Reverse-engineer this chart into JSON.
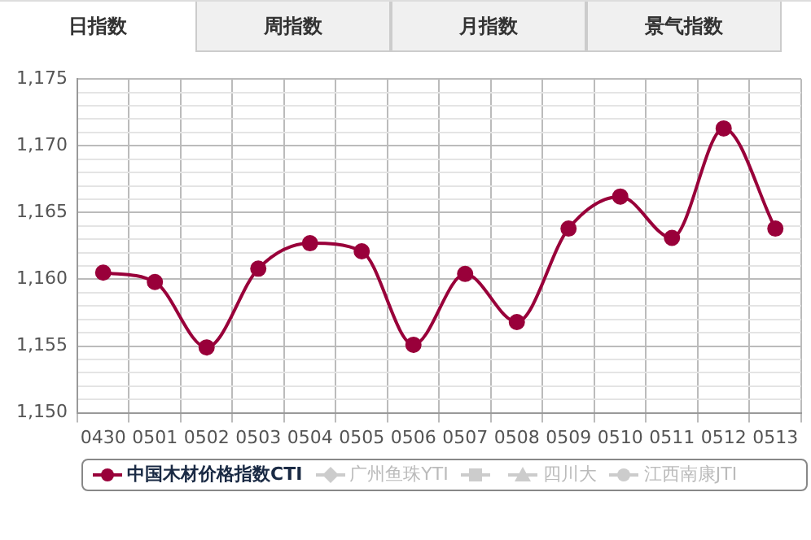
{
  "chart_data": {
    "type": "line",
    "annotations": [
      "日指数",
      "周指数",
      "月指数",
      "景气指数"
    ],
    "categories": [
      "0430",
      "0501",
      "0502",
      "0503",
      "0504",
      "0505",
      "0506",
      "0507",
      "0508",
      "0509",
      "0510",
      "0511",
      "0512",
      "0513"
    ],
    "series": [
      {
        "name": "中国木材价格指数CTI",
        "color": "#99003a",
        "marker": "circle",
        "values": [
          1160.5,
          1159.8,
          1154.9,
          1160.8,
          1162.7,
          1162.1,
          1155.1,
          1160.4,
          1156.8,
          1163.8,
          1166.2,
          1163.1,
          1171.3,
          1163.8
        ]
      },
      {
        "name": "广州鱼珠YTI",
        "color": "#cccccc",
        "marker": "diamond",
        "values": [
          null,
          null,
          null,
          null,
          null,
          null,
          null,
          null,
          null,
          null,
          null,
          null,
          null,
          null
        ]
      },
      {
        "color": "#cccccc",
        "marker": "square",
        "values": [
          null,
          null,
          null,
          null,
          null,
          null,
          null,
          null,
          null,
          null,
          null,
          null,
          null,
          null
        ]
      },
      {
        "name": "四川大",
        "color": "#cccccc",
        "marker": "triangle",
        "values": [
          null,
          null,
          null,
          null,
          null,
          null,
          null,
          null,
          null,
          null,
          null,
          null,
          null,
          null
        ]
      },
      {
        "name": "江西南康JTI",
        "color": "#cccccc",
        "marker": "circle",
        "values": [
          null,
          null,
          null,
          null,
          null,
          null,
          null,
          null,
          null,
          null,
          null,
          null,
          null,
          null
        ]
      }
    ],
    "ylim": [
      1150,
      1175
    ],
    "yticks": [
      {
        "value": 1150,
        "label": "1,150"
      },
      {
        "value": 1151,
        "label": null
      },
      {
        "value": 1152,
        "label": null
      },
      {
        "value": 1153,
        "label": null
      },
      {
        "value": 1154,
        "label": null
      },
      {
        "value": 1155,
        "label": "1,155"
      },
      {
        "value": 1156,
        "label": null
      },
      {
        "value": 1157,
        "label": null
      },
      {
        "value": 1158,
        "label": null
      },
      {
        "value": 1159,
        "label": null
      },
      {
        "value": 1160,
        "label": "1,160"
      },
      {
        "value": 1161,
        "label": null
      },
      {
        "value": 1162,
        "label": null
      },
      {
        "value": 1163,
        "label": null
      },
      {
        "value": 1164,
        "label": null
      },
      {
        "value": 1165,
        "label": "1,165"
      },
      {
        "value": 1166,
        "label": null
      },
      {
        "value": 1167,
        "label": null
      },
      {
        "value": 1168,
        "label": null
      },
      {
        "value": 1169,
        "label": null
      },
      {
        "value": 1170,
        "label": "1,170"
      },
      {
        "value": 1171,
        "label": null
      },
      {
        "value": 1172,
        "label": null
      },
      {
        "value": 1173,
        "label": null
      },
      {
        "value": 1174,
        "label": null
      },
      {
        "value": 1175,
        "label": "1,175"
      }
    ],
    "grid": true,
    "legend": "bottom"
  }
}
